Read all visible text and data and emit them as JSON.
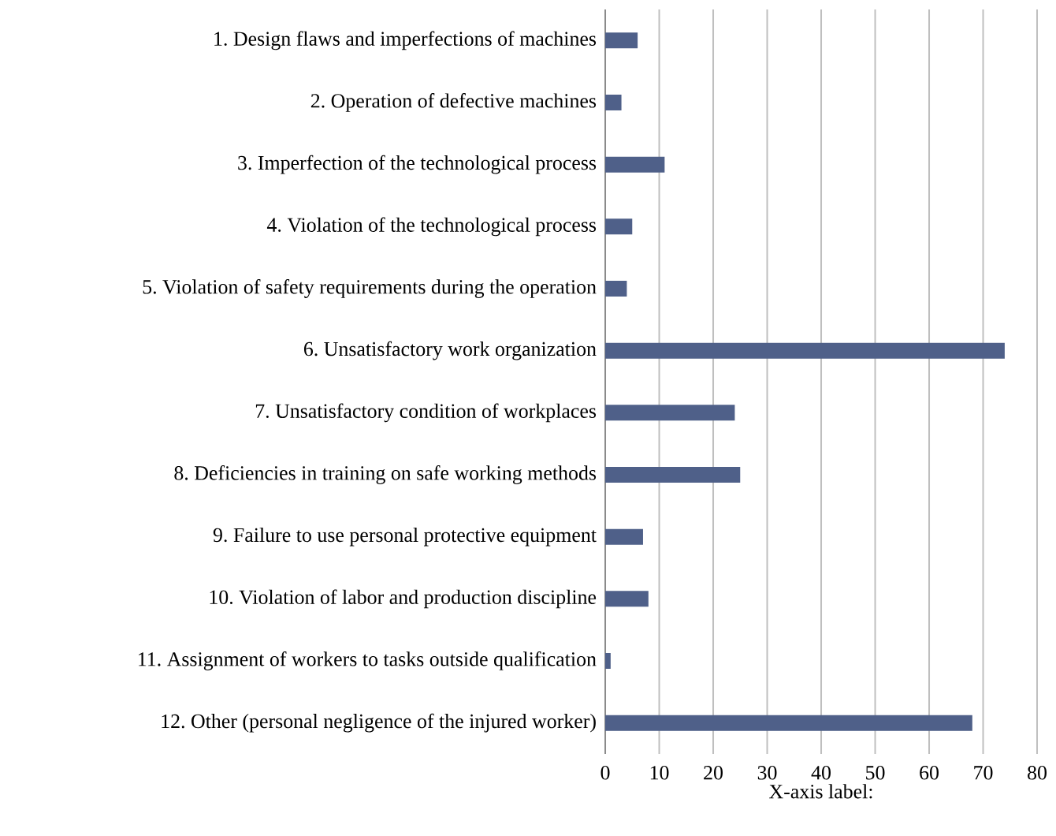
{
  "chart_data": {
    "type": "bar",
    "orientation": "horizontal",
    "xlabel": "X-axis label:",
    "categories": [
      "1. Design flaws and imperfections of machines",
      "2. Operation of defective machines",
      "3. Imperfection of the technological process",
      "4. Violation of the technological process",
      "5. Violation of safety requirements during the operation",
      "6. Unsatisfactory work organization",
      "7. Unsatisfactory condition of workplaces",
      "8. Deficiencies in training on safe working methods",
      "9. Failure to use personal protective equipment",
      "10. Violation of labor and production discipline",
      "11. Assignment of workers to tasks outside qualification",
      "12. Other (personal negligence of the injured worker)"
    ],
    "values": [
      6,
      3,
      11,
      5,
      4,
      74,
      24,
      25,
      7,
      8,
      1,
      68
    ],
    "color": "#4f6089",
    "xlim": [
      0,
      80
    ],
    "xticks": [
      0,
      10,
      20,
      30,
      40,
      50,
      60,
      70,
      80
    ],
    "grid": "x"
  }
}
